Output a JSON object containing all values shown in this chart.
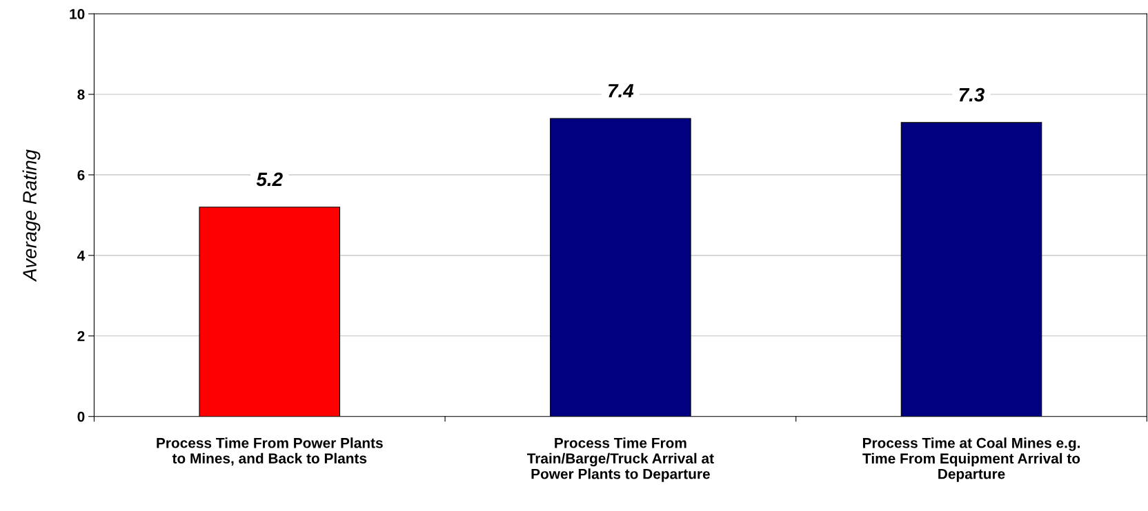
{
  "chart_data": {
    "type": "bar",
    "ylabel": "Average Rating",
    "categories": [
      "Process Time From Power Plants\nto Mines, and Back to Plants",
      "Process Time From\nTrain/Barge/Truck Arrival at\nPower Plants to Departure",
      "Process Time at Coal Mines e.g.\nTime From Equipment Arrival to\nDeparture"
    ],
    "values": [
      5.2,
      7.4,
      7.3
    ],
    "colors": [
      "#ff0000",
      "#000080",
      "#000080"
    ],
    "ylim": [
      0,
      10
    ],
    "yticks": [
      0,
      2,
      4,
      6,
      8,
      10
    ],
    "grid": "y",
    "data_labels": true
  }
}
